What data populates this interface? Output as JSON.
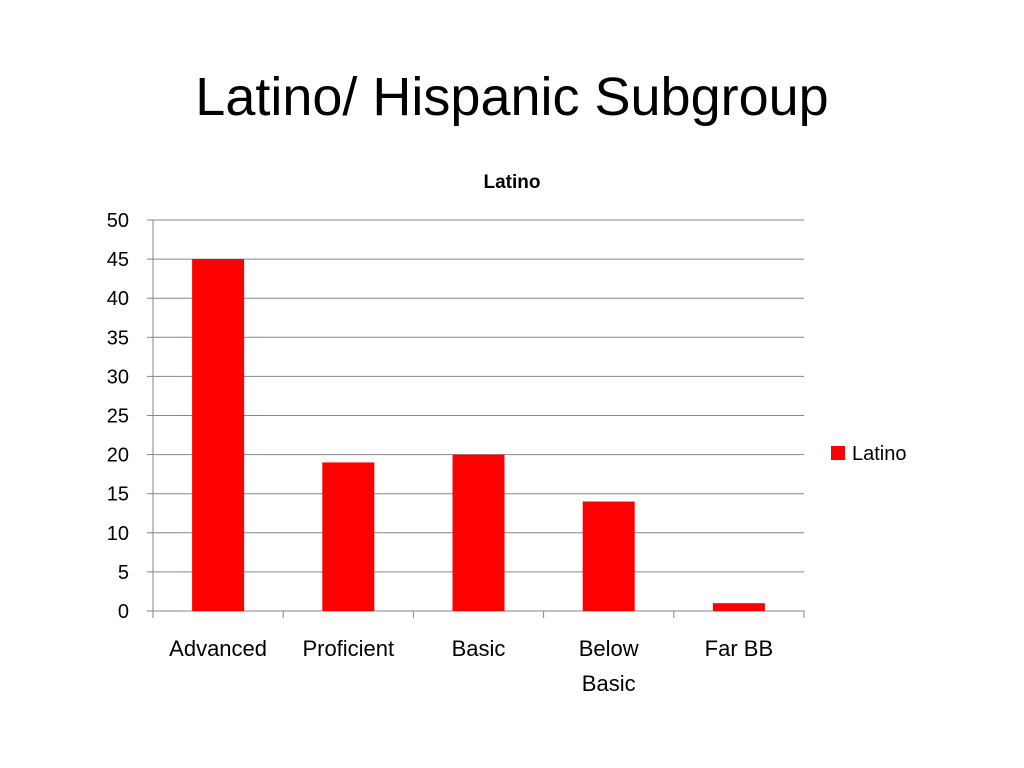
{
  "slide": {
    "title": "Latino/ Hispanic Subgroup"
  },
  "chart_data": {
    "type": "bar",
    "title": "Latino",
    "xlabel": "",
    "ylabel": "",
    "categories": [
      "Advanced",
      "Proficient",
      "Basic",
      "Below Basic",
      "Far BB"
    ],
    "series": [
      {
        "name": "Latino",
        "color": "#ff0000",
        "values": [
          45,
          19,
          20,
          14,
          1
        ]
      }
    ],
    "ylim": [
      0,
      50
    ],
    "yticks": [
      0,
      5,
      10,
      15,
      20,
      25,
      30,
      35,
      40,
      45,
      50
    ],
    "grid": true,
    "legend_position": "right"
  }
}
